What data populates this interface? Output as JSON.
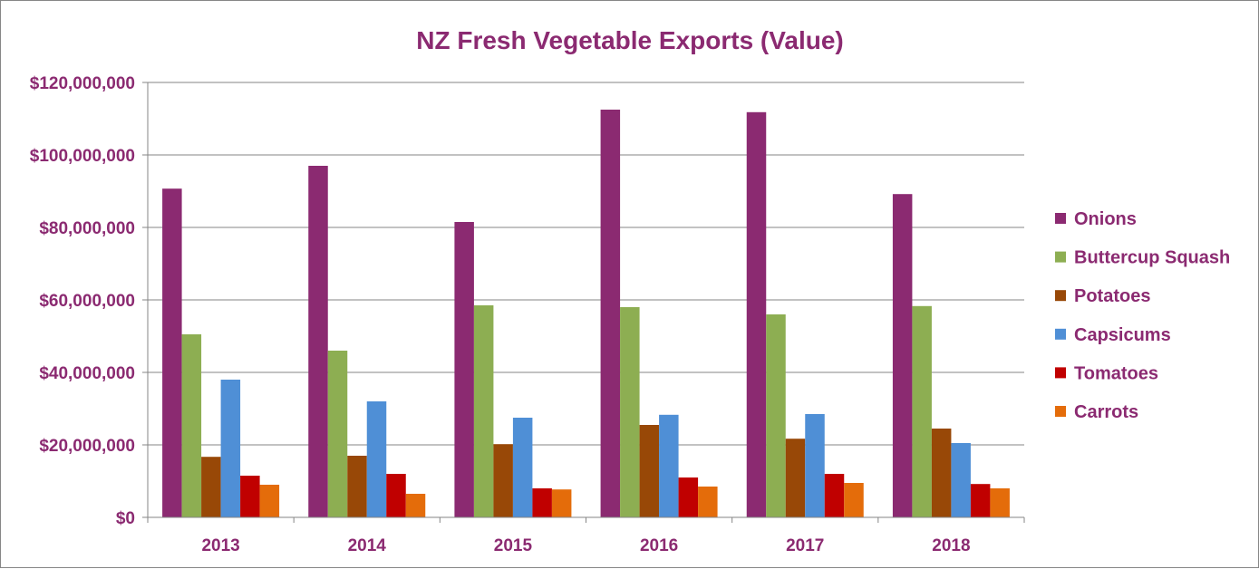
{
  "chart_data": {
    "type": "bar",
    "title": "NZ Fresh Vegetable Exports (Value)",
    "xlabel": "",
    "ylabel": "",
    "categories": [
      "2013",
      "2014",
      "2015",
      "2016",
      "2017",
      "2018"
    ],
    "ylim": [
      0,
      120000000
    ],
    "yticks": [
      0,
      20000000,
      40000000,
      60000000,
      80000000,
      100000000,
      120000000
    ],
    "ytick_labels": [
      "$0",
      "$20,000,000",
      "$40,000,000",
      "$60,000,000",
      "$80,000,000",
      "$100,000,000",
      "$120,000,000"
    ],
    "grid": true,
    "legend_position": "right",
    "series": [
      {
        "name": "Onions",
        "color": "#8B2A71",
        "values": [
          90700000,
          97000000,
          81500000,
          112500000,
          111800000,
          89200000
        ]
      },
      {
        "name": "Buttercup Squash",
        "color": "#8DAE52",
        "values": [
          50500000,
          46000000,
          58500000,
          58000000,
          56000000,
          58300000
        ]
      },
      {
        "name": "Potatoes",
        "color": "#984807",
        "values": [
          16700000,
          17000000,
          20200000,
          25500000,
          21700000,
          24500000
        ]
      },
      {
        "name": "Capsicums",
        "color": "#4F8FD6",
        "values": [
          38000000,
          32000000,
          27500000,
          28300000,
          28500000,
          20500000
        ]
      },
      {
        "name": "Tomatoes",
        "color": "#C00000",
        "values": [
          11500000,
          12000000,
          8000000,
          11000000,
          12000000,
          9200000
        ]
      },
      {
        "name": "Carrots",
        "color": "#E46C0A",
        "values": [
          9000000,
          6500000,
          7700000,
          8500000,
          9500000,
          8000000
        ]
      }
    ]
  }
}
